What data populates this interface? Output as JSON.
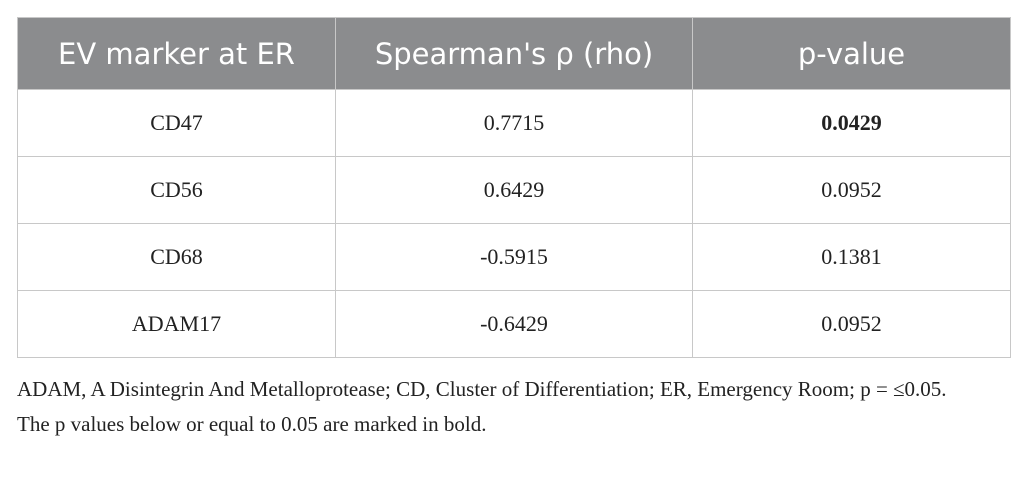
{
  "table": {
    "header": [
      "EV marker at ER",
      "Spearman's ρ (rho)",
      "p-value"
    ],
    "rows": [
      [
        "CD47",
        "0.7715",
        "0.0429"
      ],
      [
        "CD56",
        "0.6429",
        "0.0952"
      ],
      [
        "CD68",
        "-0.5915",
        "0.1381"
      ],
      [
        "ADAM17",
        "-0.6429",
        "0.0952"
      ]
    ]
  },
  "notes": [
    "ADAM, A Disintegrin And Metalloprotease; CD, Cluster of Differentiation; ER, Emergency Room; p = ≤0.05.",
    "The p values below or equal to 0.05 are marked in bold."
  ]
}
